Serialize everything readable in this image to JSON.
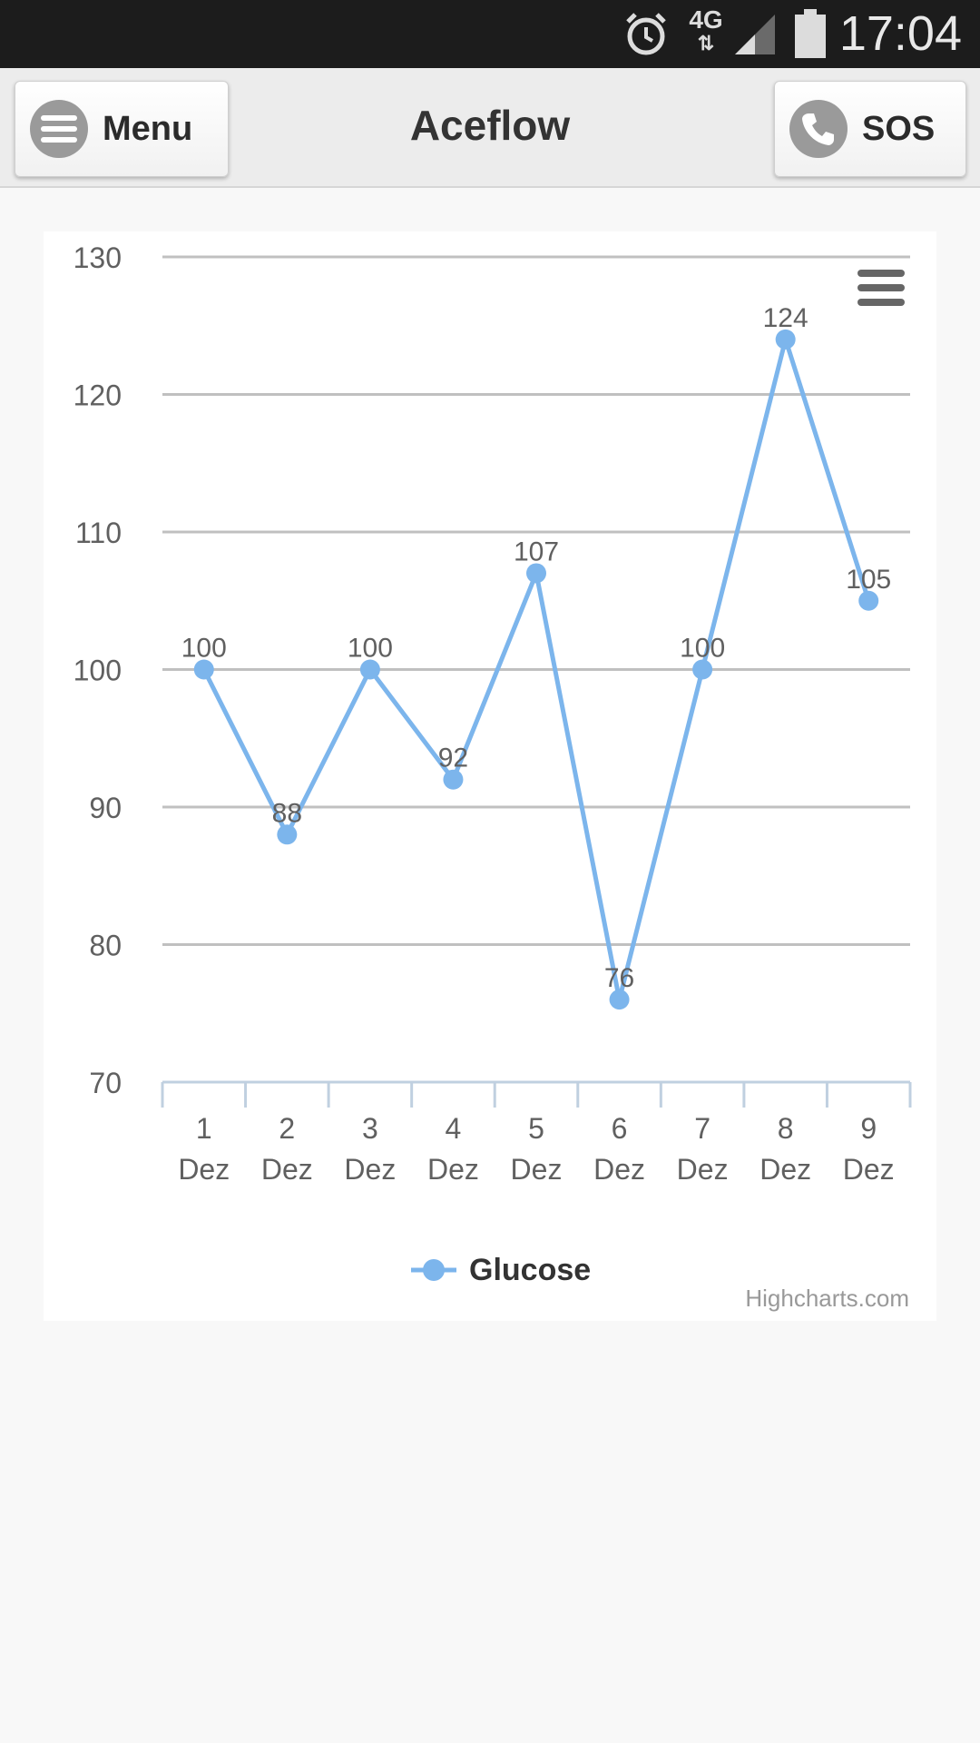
{
  "status_bar": {
    "time": "17:04",
    "network": "4G",
    "icons": [
      "alarm-icon",
      "network-4g-icon",
      "signal-icon",
      "battery-icon"
    ]
  },
  "header": {
    "title": "Aceflow",
    "menu_label": "Menu",
    "sos_label": "SOS",
    "menu_icon": "hamburger-icon",
    "sos_icon": "phone-icon"
  },
  "chart": {
    "credits": "Highcharts.com",
    "export_menu_icon": "hamburger-icon"
  },
  "colors": {
    "series": "#7cb5ec",
    "grid": "#c0c0c0",
    "axis": "#c0d0e0"
  },
  "chart_data": {
    "type": "line",
    "title": "",
    "xlabel": "",
    "ylabel": "",
    "categories": [
      "1 Dez",
      "2 Dez",
      "3 Dez",
      "4 Dez",
      "5 Dez",
      "6 Dez",
      "7 Dez",
      "8 Dez",
      "9 Dez"
    ],
    "series": [
      {
        "name": "Glucose",
        "values": [
          100,
          88,
          100,
          92,
          107,
          76,
          100,
          124,
          105
        ]
      }
    ],
    "ylim": [
      70,
      130
    ],
    "yticks": [
      70,
      80,
      90,
      100,
      110,
      120,
      130
    ],
    "grid": true,
    "data_labels": true,
    "legend_position": "bottom-center"
  }
}
